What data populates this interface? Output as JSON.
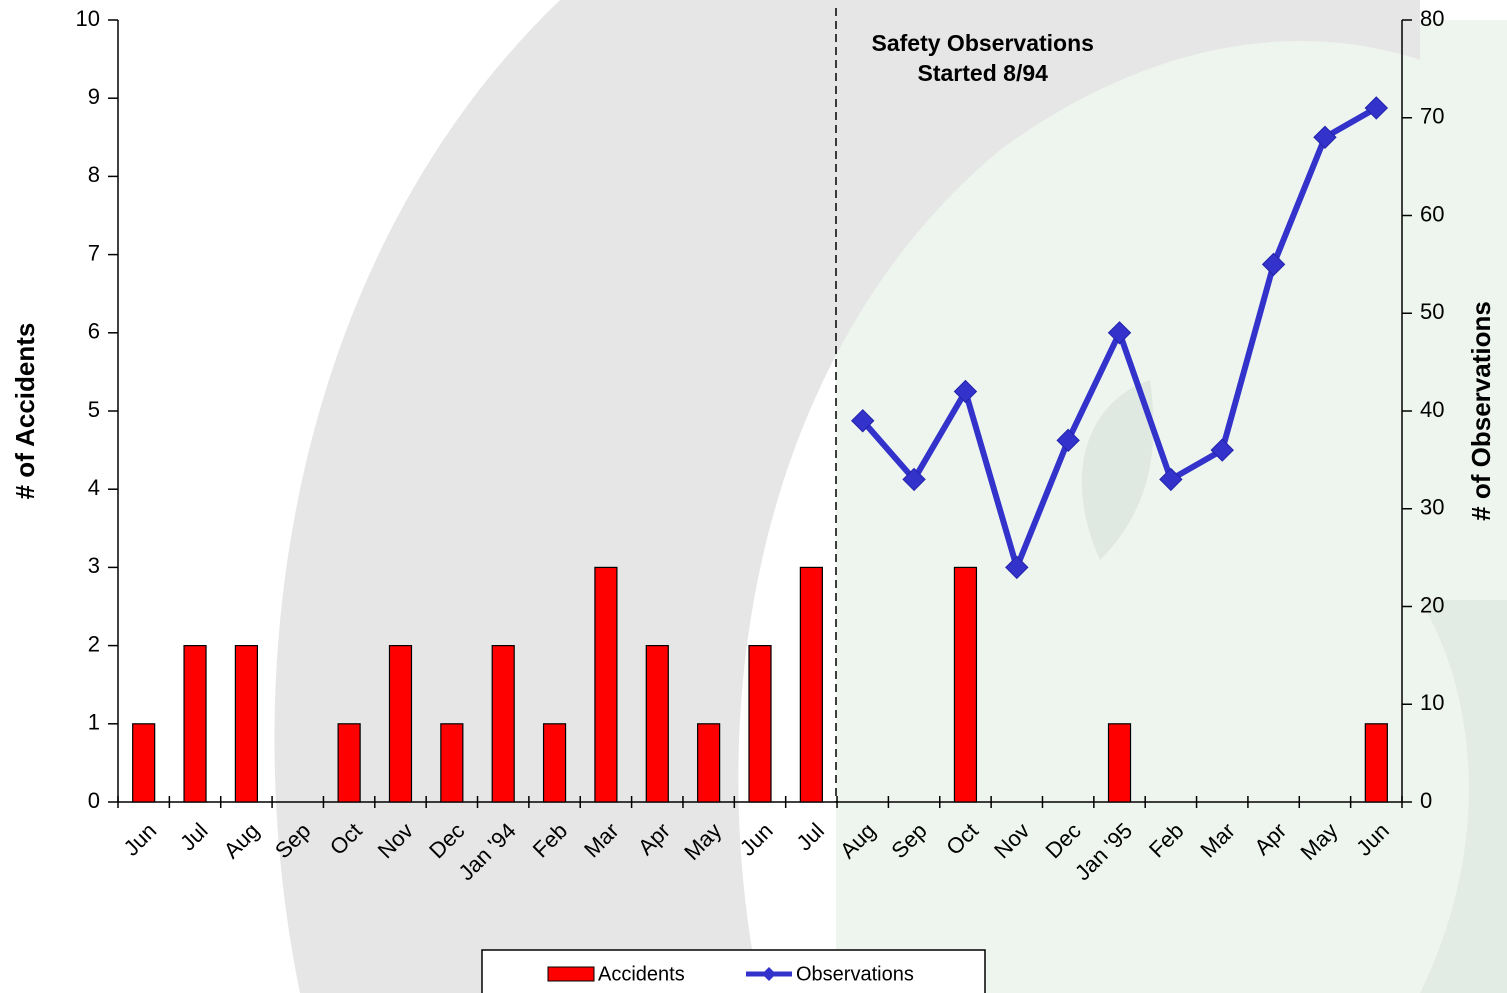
{
  "chart_data": {
    "type": "bar_line",
    "categories": [
      "Jun",
      "Jul",
      "Aug",
      "Sep",
      "Oct",
      "Nov",
      "Dec",
      "Jan '94",
      "Feb",
      "Mar",
      "Apr",
      "May",
      "Jun",
      "Jul",
      "Aug",
      "Sep",
      "Oct",
      "Nov",
      "Dec",
      "Jan '95",
      "Feb",
      "Mar",
      "Apr",
      "May",
      "Jun"
    ],
    "series": [
      {
        "name": "Accidents",
        "type": "bar",
        "color": "#ff0000",
        "values": [
          1,
          2,
          2,
          0,
          1,
          2,
          1,
          2,
          1,
          3,
          2,
          1,
          2,
          3,
          0,
          0,
          3,
          0,
          0,
          1,
          0,
          0,
          0,
          0,
          1
        ]
      },
      {
        "name": "Observations",
        "type": "line",
        "axis": "y2",
        "color": "#3333cc",
        "values": [
          null,
          null,
          null,
          null,
          null,
          null,
          null,
          null,
          null,
          null,
          null,
          null,
          null,
          null,
          39,
          33,
          42,
          24,
          37,
          48,
          33,
          36,
          55,
          68,
          71
        ]
      }
    ],
    "ylabel": "# of Accidents",
    "y2label": "# of Observations",
    "ylim": [
      0,
      10
    ],
    "yticks": [
      0,
      1,
      2,
      3,
      4,
      5,
      6,
      7,
      8,
      9,
      10
    ],
    "y2lim": [
      0,
      80
    ],
    "y2ticks": [
      0,
      10,
      20,
      30,
      40,
      50,
      60,
      70,
      80
    ],
    "annotation": {
      "lines": [
        "Safety Observations",
        "Started 8/94"
      ],
      "category_index": 14
    },
    "legend": "bottom"
  }
}
